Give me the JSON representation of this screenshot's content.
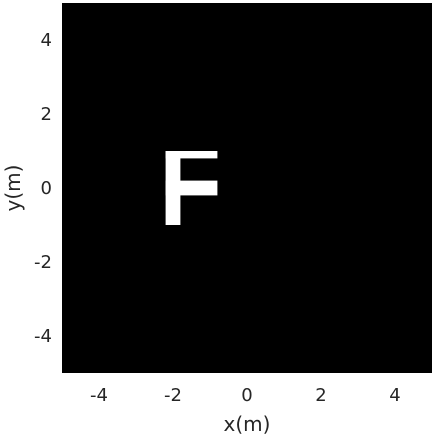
{
  "chart_data": {
    "type": "heatmap",
    "title": "",
    "xlabel": "x(m)",
    "ylabel": "y(m)",
    "xlim": [
      -5,
      5
    ],
    "ylim": [
      -5,
      5
    ],
    "xticks": [
      -4,
      -2,
      0,
      2,
      4
    ],
    "yticks": [
      -4,
      -2,
      0,
      2,
      4
    ],
    "xtick_labels": [
      "-4",
      "-2",
      "0",
      "2",
      "4"
    ],
    "ytick_labels": [
      "-4",
      "-2",
      "0",
      "2",
      "4"
    ],
    "grid": false,
    "background_color": "#000000",
    "foreground_color": "#ffffff",
    "shapes": [
      {
        "name": "letter-f",
        "label": "F",
        "rects": [
          {
            "part": "stem",
            "x": [
              -2.2,
              -1.8
            ],
            "y": [
              -1.0,
              1.0
            ]
          },
          {
            "part": "top-bar",
            "x": [
              -2.2,
              -0.8
            ],
            "y": [
              0.8,
              1.0
            ]
          },
          {
            "part": "middle-bar",
            "x": [
              -2.2,
              -0.8
            ],
            "y": [
              -0.2,
              0.2
            ]
          }
        ]
      }
    ]
  }
}
